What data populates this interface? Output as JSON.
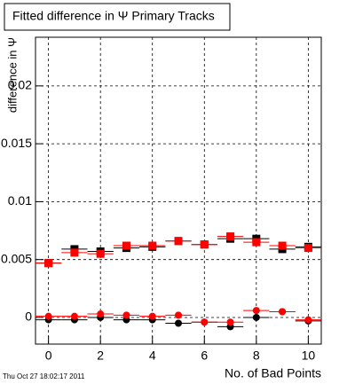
{
  "chart_data": {
    "type": "scatter",
    "title": "Fitted difference in Ψ  Primary Tracks",
    "x_label": "No. of Bad Points",
    "y_label": "difference in Ψ",
    "timestamp": "Thu Oct 27 18:02:17 2011",
    "x": [
      0,
      1,
      2,
      3,
      4,
      5,
      6,
      7,
      8,
      9,
      10
    ],
    "x_error": 0.5,
    "xlim": [
      -0.5,
      10.5
    ],
    "xticks": [
      0,
      2,
      4,
      6,
      8,
      10
    ],
    "ylim": [
      -0.0023,
      0.0242
    ],
    "yticks": [
      0,
      0.005,
      0.01,
      0.015,
      0.02
    ],
    "grid": true,
    "series": [
      {
        "color": "#000000",
        "marker": "square",
        "values": [
          0.0047,
          0.0059,
          0.0057,
          0.006,
          0.0061,
          0.0066,
          0.0063,
          0.0068,
          0.0068,
          0.0059,
          0.0061
        ]
      },
      {
        "color": "#ff0000",
        "marker": "square",
        "values": [
          0.0047,
          0.0056,
          0.0055,
          0.0062,
          0.0062,
          0.0066,
          0.0063,
          0.007,
          0.0065,
          0.0062,
          0.006
        ]
      },
      {
        "color": "#000000",
        "marker": "circle",
        "values": [
          -0.0002,
          -0.0002,
          0.0,
          -0.0002,
          -0.0002,
          -0.0005,
          -0.0004,
          -0.0008,
          0.0,
          0.0005,
          -0.0003
        ]
      },
      {
        "color": "#ff0000",
        "marker": "circle",
        "values": [
          0.0001,
          0.0001,
          0.0003,
          0.0002,
          0.0001,
          0.0002,
          -0.0004,
          -0.0004,
          0.0006,
          0.0005,
          -0.0002
        ]
      }
    ]
  }
}
